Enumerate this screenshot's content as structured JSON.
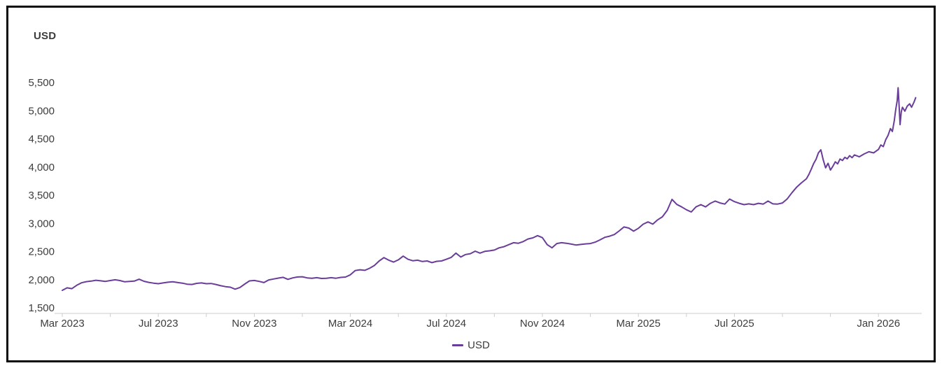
{
  "header": {
    "unit_label": "USD"
  },
  "legend": {
    "items": [
      {
        "label": "USD",
        "color": "#6a3d9a"
      }
    ]
  },
  "colors": {
    "line": "#6a3d9a",
    "axis": "#cccccc",
    "text": "#3c3c3c",
    "frame_border": "#0a0a0a"
  },
  "chart_data": {
    "type": "line",
    "title": "USD",
    "xlabel": "",
    "ylabel": "USD",
    "grid": false,
    "legend_position": "bottom-center",
    "x_unit": "months since Mar 2023",
    "xlim": [
      0,
      35.6
    ],
    "ylim": [
      1500,
      5500
    ],
    "y_ticks": [
      {
        "v": 1500,
        "label": "1,500"
      },
      {
        "v": 2000,
        "label": "2,000"
      },
      {
        "v": 2500,
        "label": "2,500"
      },
      {
        "v": 3000,
        "label": "3,000"
      },
      {
        "v": 3500,
        "label": "3,500"
      },
      {
        "v": 4000,
        "label": "4,000"
      },
      {
        "v": 4500,
        "label": "4,500"
      },
      {
        "v": 5000,
        "label": "5,000"
      },
      {
        "v": 5500,
        "label": "5,500"
      }
    ],
    "x_ticks": [
      {
        "m": 0,
        "label": "Mar 2023"
      },
      {
        "m": 4,
        "label": "Jul 2023"
      },
      {
        "m": 8,
        "label": "Nov 2023"
      },
      {
        "m": 12,
        "label": "Mar 2024"
      },
      {
        "m": 16,
        "label": "Jul 2024"
      },
      {
        "m": 20,
        "label": "Nov 2024"
      },
      {
        "m": 24,
        "label": "Mar 2025"
      },
      {
        "m": 28,
        "label": "Jul 2025"
      },
      {
        "m": 34,
        "label": "Jan 2026"
      }
    ],
    "series": [
      {
        "name": "USD",
        "color": "#6a3d9a",
        "points": [
          [
            0,
            1810
          ],
          [
            0.2,
            1855
          ],
          [
            0.4,
            1840
          ],
          [
            0.6,
            1900
          ],
          [
            0.8,
            1945
          ],
          [
            1,
            1965
          ],
          [
            1.2,
            1975
          ],
          [
            1.4,
            1990
          ],
          [
            1.6,
            1980
          ],
          [
            1.8,
            1970
          ],
          [
            2,
            1985
          ],
          [
            2.2,
            1998
          ],
          [
            2.4,
            1985
          ],
          [
            2.6,
            1962
          ],
          [
            2.8,
            1968
          ],
          [
            3,
            1975
          ],
          [
            3.2,
            2008
          ],
          [
            3.4,
            1972
          ],
          [
            3.6,
            1952
          ],
          [
            3.8,
            1938
          ],
          [
            4,
            1928
          ],
          [
            4.2,
            1942
          ],
          [
            4.4,
            1955
          ],
          [
            4.6,
            1962
          ],
          [
            4.8,
            1950
          ],
          [
            5,
            1938
          ],
          [
            5.2,
            1920
          ],
          [
            5.4,
            1915
          ],
          [
            5.6,
            1935
          ],
          [
            5.8,
            1942
          ],
          [
            6,
            1928
          ],
          [
            6.2,
            1932
          ],
          [
            6.4,
            1915
          ],
          [
            6.6,
            1892
          ],
          [
            6.8,
            1876
          ],
          [
            7,
            1866
          ],
          [
            7.2,
            1832
          ],
          [
            7.4,
            1862
          ],
          [
            7.6,
            1922
          ],
          [
            7.8,
            1978
          ],
          [
            8,
            1986
          ],
          [
            8.2,
            1970
          ],
          [
            8.4,
            1948
          ],
          [
            8.6,
            1996
          ],
          [
            8.8,
            2012
          ],
          [
            9,
            2028
          ],
          [
            9.2,
            2042
          ],
          [
            9.4,
            2006
          ],
          [
            9.6,
            2032
          ],
          [
            9.8,
            2048
          ],
          [
            10,
            2052
          ],
          [
            10.2,
            2032
          ],
          [
            10.4,
            2026
          ],
          [
            10.6,
            2036
          ],
          [
            10.8,
            2022
          ],
          [
            11,
            2026
          ],
          [
            11.2,
            2036
          ],
          [
            11.4,
            2026
          ],
          [
            11.6,
            2040
          ],
          [
            11.8,
            2046
          ],
          [
            12,
            2086
          ],
          [
            12.2,
            2162
          ],
          [
            12.4,
            2176
          ],
          [
            12.6,
            2166
          ],
          [
            12.8,
            2202
          ],
          [
            13,
            2252
          ],
          [
            13.2,
            2332
          ],
          [
            13.4,
            2392
          ],
          [
            13.6,
            2346
          ],
          [
            13.8,
            2312
          ],
          [
            14,
            2352
          ],
          [
            14.2,
            2418
          ],
          [
            14.4,
            2362
          ],
          [
            14.6,
            2336
          ],
          [
            14.8,
            2346
          ],
          [
            15,
            2322
          ],
          [
            15.2,
            2332
          ],
          [
            15.4,
            2302
          ],
          [
            15.6,
            2326
          ],
          [
            15.8,
            2332
          ],
          [
            16,
            2362
          ],
          [
            16.2,
            2396
          ],
          [
            16.4,
            2472
          ],
          [
            16.6,
            2402
          ],
          [
            16.8,
            2446
          ],
          [
            17,
            2462
          ],
          [
            17.2,
            2506
          ],
          [
            17.4,
            2472
          ],
          [
            17.6,
            2502
          ],
          [
            17.8,
            2512
          ],
          [
            18,
            2526
          ],
          [
            18.2,
            2566
          ],
          [
            18.4,
            2586
          ],
          [
            18.6,
            2622
          ],
          [
            18.8,
            2656
          ],
          [
            19,
            2646
          ],
          [
            19.2,
            2676
          ],
          [
            19.4,
            2722
          ],
          [
            19.6,
            2742
          ],
          [
            19.8,
            2782
          ],
          [
            20,
            2746
          ],
          [
            20.2,
            2622
          ],
          [
            20.4,
            2566
          ],
          [
            20.6,
            2642
          ],
          [
            20.8,
            2656
          ],
          [
            21,
            2646
          ],
          [
            21.2,
            2632
          ],
          [
            21.4,
            2616
          ],
          [
            21.6,
            2626
          ],
          [
            21.8,
            2636
          ],
          [
            22,
            2642
          ],
          [
            22.2,
            2666
          ],
          [
            22.4,
            2706
          ],
          [
            22.6,
            2752
          ],
          [
            22.8,
            2772
          ],
          [
            23,
            2802
          ],
          [
            23.2,
            2866
          ],
          [
            23.4,
            2936
          ],
          [
            23.6,
            2916
          ],
          [
            23.8,
            2862
          ],
          [
            24,
            2912
          ],
          [
            24.2,
            2986
          ],
          [
            24.4,
            3026
          ],
          [
            24.6,
            2986
          ],
          [
            24.8,
            3062
          ],
          [
            25,
            3116
          ],
          [
            25.2,
            3232
          ],
          [
            25.4,
            3426
          ],
          [
            25.6,
            3336
          ],
          [
            25.8,
            3292
          ],
          [
            26,
            3242
          ],
          [
            26.2,
            3202
          ],
          [
            26.4,
            3292
          ],
          [
            26.6,
            3332
          ],
          [
            26.8,
            3292
          ],
          [
            27,
            3356
          ],
          [
            27.2,
            3396
          ],
          [
            27.4,
            3362
          ],
          [
            27.6,
            3342
          ],
          [
            27.8,
            3432
          ],
          [
            28,
            3386
          ],
          [
            28.2,
            3356
          ],
          [
            28.4,
            3332
          ],
          [
            28.6,
            3346
          ],
          [
            28.8,
            3332
          ],
          [
            29,
            3356
          ],
          [
            29.2,
            3342
          ],
          [
            29.4,
            3396
          ],
          [
            29.6,
            3346
          ],
          [
            29.8,
            3342
          ],
          [
            30,
            3362
          ],
          [
            30.2,
            3436
          ],
          [
            30.4,
            3546
          ],
          [
            30.6,
            3646
          ],
          [
            30.8,
            3722
          ],
          [
            31,
            3792
          ],
          [
            31.1,
            3866
          ],
          [
            31.2,
            3962
          ],
          [
            31.3,
            4062
          ],
          [
            31.4,
            4136
          ],
          [
            31.5,
            4252
          ],
          [
            31.6,
            4306
          ],
          [
            31.7,
            4126
          ],
          [
            31.8,
            3986
          ],
          [
            31.9,
            4066
          ],
          [
            32,
            3946
          ],
          [
            32.1,
            4012
          ],
          [
            32.2,
            4092
          ],
          [
            32.3,
            4056
          ],
          [
            32.4,
            4142
          ],
          [
            32.5,
            4116
          ],
          [
            32.6,
            4172
          ],
          [
            32.7,
            4146
          ],
          [
            32.8,
            4202
          ],
          [
            32.9,
            4166
          ],
          [
            33,
            4216
          ],
          [
            33.2,
            4182
          ],
          [
            33.4,
            4232
          ],
          [
            33.6,
            4272
          ],
          [
            33.8,
            4252
          ],
          [
            34,
            4312
          ],
          [
            34.1,
            4392
          ],
          [
            34.2,
            4362
          ],
          [
            34.3,
            4482
          ],
          [
            34.4,
            4562
          ],
          [
            34.5,
            4682
          ],
          [
            34.58,
            4632
          ],
          [
            34.66,
            4822
          ],
          [
            34.72,
            5022
          ],
          [
            34.78,
            5182
          ],
          [
            34.82,
            5408
          ],
          [
            34.86,
            5092
          ],
          [
            34.9,
            4752
          ],
          [
            34.95,
            4982
          ],
          [
            35,
            5062
          ],
          [
            35.1,
            4992
          ],
          [
            35.2,
            5082
          ],
          [
            35.3,
            5122
          ],
          [
            35.38,
            5062
          ],
          [
            35.48,
            5152
          ],
          [
            35.55,
            5232
          ]
        ]
      }
    ]
  }
}
